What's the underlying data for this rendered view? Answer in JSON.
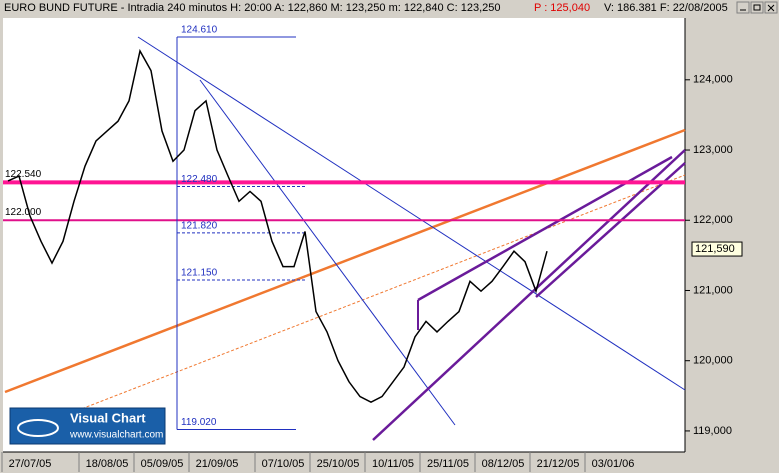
{
  "chart_data": {
    "type": "line",
    "title": "EURO BUND FUTURE - Intradia 240 minutos H: 20:00 A: 122,860 M: 123,250 m: 122,840 C: 123,250",
    "price_note": "P : 125,040",
    "title_tail": "V: 186.381 F: 22/08/2005",
    "categories": [
      null,
      null,
      "27/07/05",
      null,
      null,
      null,
      null,
      null,
      null,
      "18/08/05",
      null,
      null,
      null,
      null,
      "05/09/05",
      null,
      null,
      null,
      null,
      "21/09/05",
      null,
      null,
      null,
      null,
      null,
      "07/10/05",
      null,
      null,
      null,
      null,
      "25/10/05",
      null,
      null,
      null,
      null,
      "10/11/05",
      null,
      null,
      null,
      null,
      "25/11/05",
      null,
      null,
      null,
      null,
      "08/12/05",
      null,
      null,
      null,
      null,
      "21/12/05",
      null,
      null,
      null,
      null,
      "03/01/06",
      null,
      null,
      null,
      null,
      null,
      null
    ],
    "series": [
      {
        "name": "EURO BUND FUTURE",
        "color": "#000000",
        "values": [
          122560,
          122630,
          122060,
          121700,
          121390,
          121700,
          122270,
          122770,
          123130,
          123270,
          123410,
          123700,
          124410,
          124130,
          123270,
          122840,
          123000,
          123560,
          123700,
          123000,
          122630,
          122270,
          122410,
          122270,
          121700,
          121340,
          121340,
          121840,
          120700,
          120410,
          120000,
          119700,
          119490,
          119410,
          119490,
          119700,
          119910,
          120340,
          120560,
          120410,
          120560,
          120700,
          121130,
          120990,
          121130,
          121340,
          121560,
          121410,
          120990,
          121560,
          null,
          null,
          null,
          null,
          null,
          null,
          null,
          null,
          null,
          null,
          null,
          null
        ]
      }
    ],
    "ylim": [
      118700,
      124880
    ],
    "yticks": [
      {
        "value": 119000,
        "label": "119,000"
      },
      {
        "value": 120000,
        "label": "120,000"
      },
      {
        "value": 121000,
        "label": "121,000"
      },
      {
        "value": 122000,
        "label": "122,000"
      },
      {
        "value": 123000,
        "label": "123,000"
      },
      {
        "value": 124000,
        "label": "124,000"
      }
    ],
    "last_price": {
      "value": 121590,
      "label": "121,590"
    },
    "horizontal_lines": [
      {
        "value": 122540,
        "label": "122.540",
        "color": "#ff1493",
        "width": 4
      },
      {
        "value": 122000,
        "label": "122.000",
        "color": "#e0108a",
        "width": 2
      }
    ],
    "fibonacci_levels": [
      {
        "value": 124610,
        "label": "124.610"
      },
      {
        "value": 122480,
        "label": "122.480"
      },
      {
        "value": 121820,
        "label": "121.820"
      },
      {
        "value": 121150,
        "label": "121.150"
      },
      {
        "value": 119020,
        "label": "119.020"
      }
    ],
    "logo": {
      "name": "Visual Chart",
      "url": "www.visualchart.com"
    }
  }
}
